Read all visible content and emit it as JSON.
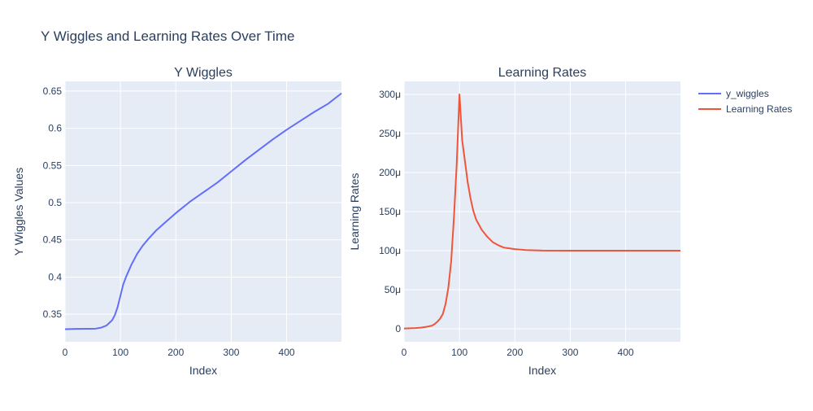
{
  "figure_title": "Y Wiggles and Learning Rates Over Time",
  "colors": {
    "plot_bg": "#e5ecf6",
    "grid": "#ffffff",
    "text": "#2a3f5f",
    "series_1": "#636efa",
    "series_2": "#ef553b"
  },
  "legend": {
    "placement": "top-right",
    "items": [
      {
        "label": "y_wiggles",
        "color": "#636efa"
      },
      {
        "label": "Learning Rates",
        "color": "#ef553b"
      }
    ]
  },
  "chart_data": [
    {
      "type": "line",
      "title": "Y Wiggles",
      "xlabel": "Index",
      "ylabel": "Y Wiggles Values",
      "xlim": [
        0,
        499
      ],
      "ylim": [
        0.313,
        0.663
      ],
      "xticks": [
        0,
        100,
        200,
        300,
        400
      ],
      "xtick_labels": [
        "0",
        "100",
        "200",
        "300",
        "400"
      ],
      "yticks": [
        0.35,
        0.4,
        0.45,
        0.5,
        0.55,
        0.6,
        0.65
      ],
      "ytick_labels": [
        "0.35",
        "0.4",
        "0.45",
        "0.5",
        "0.55",
        "0.6",
        "0.65"
      ],
      "grid": true,
      "series": [
        {
          "name": "y_wiggles",
          "color": "#636efa",
          "x": [
            0,
            20,
            40,
            55,
            65,
            75,
            85,
            90,
            95,
            100,
            105,
            110,
            120,
            130,
            140,
            150,
            165,
            180,
            200,
            225,
            250,
            275,
            300,
            325,
            350,
            375,
            400,
            425,
            450,
            475,
            499
          ],
          "y": [
            0.33,
            0.3303,
            0.3305,
            0.3307,
            0.332,
            0.335,
            0.342,
            0.349,
            0.36,
            0.375,
            0.39,
            0.4,
            0.417,
            0.431,
            0.442,
            0.451,
            0.463,
            0.473,
            0.486,
            0.501,
            0.514,
            0.527,
            0.542,
            0.557,
            0.571,
            0.585,
            0.598,
            0.61,
            0.622,
            0.633,
            0.647
          ]
        }
      ]
    },
    {
      "type": "line",
      "title": "Learning Rates",
      "xlabel": "Index",
      "ylabel": "Learning Rates",
      "xlim": [
        0,
        499
      ],
      "ylim": [
        -1.66e-05,
        0.0003166
      ],
      "xticks": [
        0,
        100,
        200,
        300,
        400
      ],
      "xtick_labels": [
        "0",
        "100",
        "200",
        "300",
        "400"
      ],
      "yticks": [
        0,
        5e-05,
        0.0001,
        0.00015,
        0.0002,
        0.00025,
        0.0003
      ],
      "ytick_labels": [
        "0",
        "50μ",
        "100μ",
        "150μ",
        "200μ",
        "250μ",
        "300μ"
      ],
      "grid": true,
      "series": [
        {
          "name": "Learning Rates",
          "color": "#ef553b",
          "x": [
            0,
            10,
            20,
            30,
            40,
            50,
            55,
            60,
            65,
            70,
            75,
            80,
            85,
            90,
            95,
            100,
            105,
            110,
            115,
            120,
            125,
            130,
            140,
            150,
            160,
            170,
            180,
            190,
            200,
            220,
            250,
            300,
            400,
            499
          ],
          "y": [
            5e-07,
            7e-07,
            1e-06,
            1.5e-06,
            2.5e-06,
            4e-06,
            6e-06,
            9e-06,
            1.3e-05,
            1.9e-05,
            3.2e-05,
            5.3e-05,
            8.6e-05,
            0.000142,
            0.00021,
            0.0003,
            0.000241,
            0.000214,
            0.000187,
            0.000167,
            0.000151,
            0.00014,
            0.000127,
            0.000118,
            0.000111,
            0.000107,
            0.000104,
            0.000103,
            0.000102,
            0.0001008,
            0.0001002,
            0.0001,
            0.0001,
            0.0001
          ]
        }
      ]
    }
  ]
}
